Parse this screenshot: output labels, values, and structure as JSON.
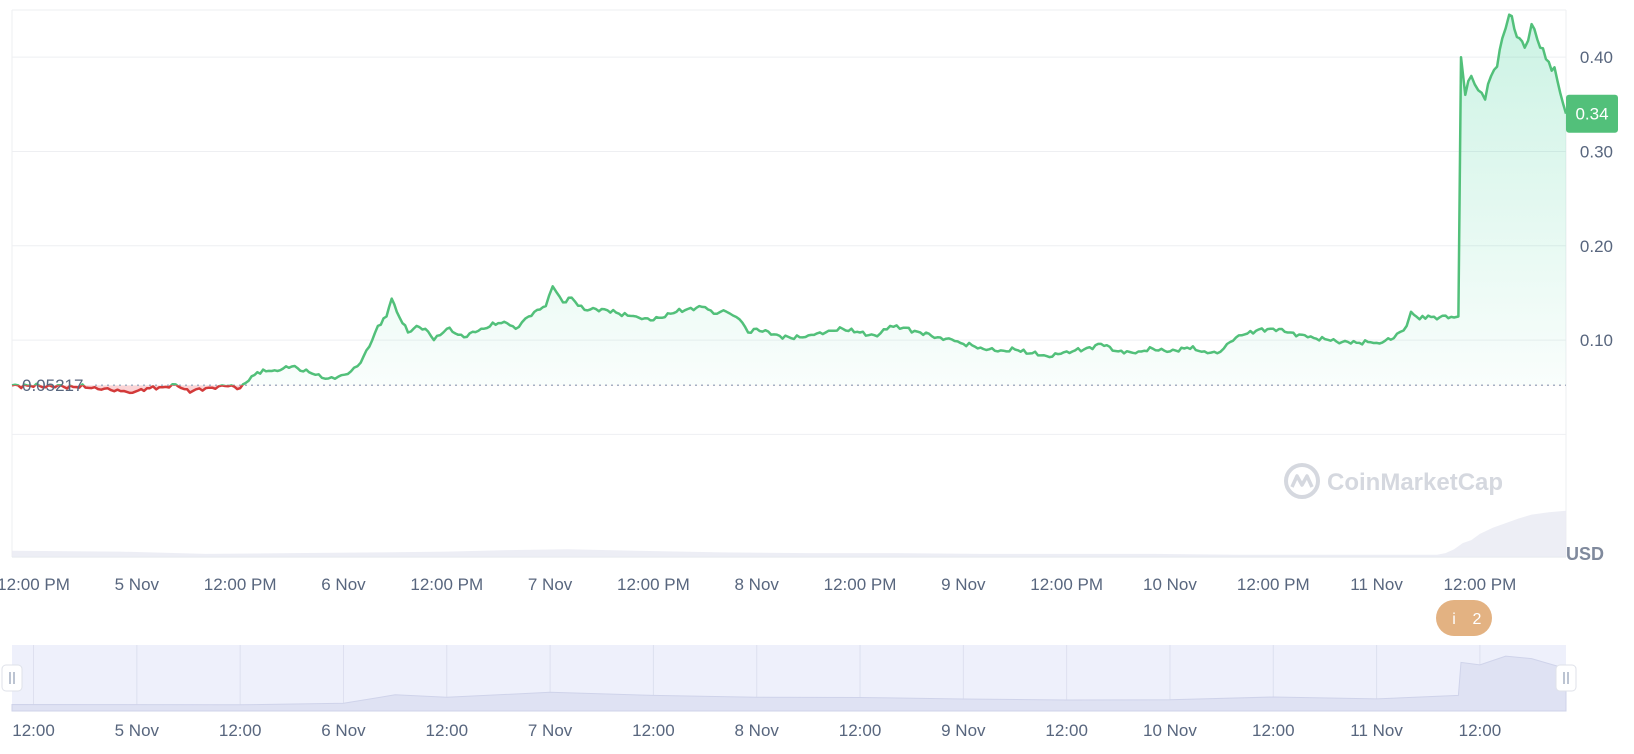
{
  "chart_data": {
    "type": "area",
    "title": "",
    "currency_label": "USD",
    "watermark": "CoinMarketCap",
    "current_price_label": "0.34",
    "baseline_label": "0.05217",
    "baseline_value": 0.05217,
    "event_marker": {
      "icon": "info-icon",
      "letter": "i",
      "count": "2"
    },
    "colors": {
      "up_line": "#52c07a",
      "down_line": "#d33a3a",
      "up_fill": "#16c784",
      "down_fill": "#ea3943",
      "badge": "#52c07a",
      "event": "#e3b282",
      "navigator_bg": "#eef0fb",
      "grid": "#eeeff2"
    },
    "y_axis": {
      "min": -0.13,
      "max": 0.45,
      "ticks": [
        0.1,
        0.2,
        0.3,
        0.4
      ],
      "tick_labels": [
        "0.10",
        "0.20",
        "0.30",
        "0.40"
      ]
    },
    "x_axis": {
      "labels": [
        {
          "t": 0,
          "text": "12:00 PM"
        },
        {
          "t": 12,
          "text": "5 Nov"
        },
        {
          "t": 24,
          "text": "12:00 PM"
        },
        {
          "t": 36,
          "text": "6 Nov"
        },
        {
          "t": 48,
          "text": "12:00 PM"
        },
        {
          "t": 60,
          "text": "7 Nov"
        },
        {
          "t": 72,
          "text": "12:00 PM"
        },
        {
          "t": 84,
          "text": "8 Nov"
        },
        {
          "t": 96,
          "text": "12:00 PM"
        },
        {
          "t": 108,
          "text": "9 Nov"
        },
        {
          "t": 120,
          "text": "12:00 PM"
        },
        {
          "t": 132,
          "text": "10 Nov"
        },
        {
          "t": 144,
          "text": "12:00 PM"
        },
        {
          "t": 156,
          "text": "11 Nov"
        },
        {
          "t": 168,
          "text": "12:00 PM"
        }
      ],
      "range_hours": [
        -2.5,
        178
      ],
      "unit": "hours since 12:00 PM 4 Nov"
    },
    "navigator_labels": [
      {
        "t": 0,
        "text": "12:00"
      },
      {
        "t": 12,
        "text": "5 Nov"
      },
      {
        "t": 24,
        "text": "12:00"
      },
      {
        "t": 36,
        "text": "6 Nov"
      },
      {
        "t": 48,
        "text": "12:00"
      },
      {
        "t": 60,
        "text": "7 Nov"
      },
      {
        "t": 72,
        "text": "12:00"
      },
      {
        "t": 84,
        "text": "8 Nov"
      },
      {
        "t": 96,
        "text": "12:00"
      },
      {
        "t": 108,
        "text": "9 Nov"
      },
      {
        "t": 120,
        "text": "12:00"
      },
      {
        "t": 132,
        "text": "10 Nov"
      },
      {
        "t": 144,
        "text": "12:00"
      },
      {
        "t": 156,
        "text": "11 Nov"
      },
      {
        "t": 168,
        "text": "12:00"
      }
    ],
    "series": [
      {
        "name": "Price",
        "points": [
          [
            -2.5,
            0.052
          ],
          [
            7.1,
            0.05
          ],
          [
            7.5,
            0.048
          ],
          [
            9,
            0.047
          ],
          [
            10.5,
            0.046
          ],
          [
            11.2,
            0.044
          ],
          [
            12.5,
            0.048
          ],
          [
            13.5,
            0.049
          ],
          [
            15,
            0.05
          ],
          [
            16.5,
            0.053
          ],
          [
            17.5,
            0.048
          ],
          [
            18.5,
            0.046
          ],
          [
            20,
            0.049
          ],
          [
            21.5,
            0.051
          ],
          [
            23,
            0.052
          ],
          [
            24,
            0.049
          ],
          [
            25,
            0.057
          ],
          [
            26,
            0.066
          ],
          [
            28,
            0.068
          ],
          [
            30,
            0.072
          ],
          [
            32,
            0.066
          ],
          [
            33.5,
            0.06
          ],
          [
            35,
            0.059
          ],
          [
            36.5,
            0.064
          ],
          [
            38,
            0.076
          ],
          [
            39,
            0.093
          ],
          [
            40,
            0.115
          ],
          [
            41,
            0.125
          ],
          [
            41.6,
            0.144
          ],
          [
            42.2,
            0.13
          ],
          [
            43.5,
            0.108
          ],
          [
            44.5,
            0.115
          ],
          [
            45.5,
            0.112
          ],
          [
            46.5,
            0.1
          ],
          [
            48,
            0.112
          ],
          [
            50,
            0.103
          ],
          [
            52,
            0.112
          ],
          [
            54,
            0.118
          ],
          [
            55,
            0.118
          ],
          [
            56,
            0.112
          ],
          [
            57.5,
            0.125
          ],
          [
            58.5,
            0.132
          ],
          [
            59.5,
            0.136
          ],
          [
            60.3,
            0.157
          ],
          [
            61.5,
            0.14
          ],
          [
            62.5,
            0.145
          ],
          [
            64,
            0.132
          ],
          [
            66,
            0.133
          ],
          [
            68,
            0.128
          ],
          [
            70,
            0.125
          ],
          [
            72,
            0.121
          ],
          [
            74,
            0.128
          ],
          [
            76,
            0.133
          ],
          [
            78,
            0.135
          ],
          [
            79,
            0.128
          ],
          [
            80.5,
            0.13
          ],
          [
            82,
            0.122
          ],
          [
            83,
            0.108
          ],
          [
            84,
            0.112
          ],
          [
            86,
            0.106
          ],
          [
            88,
            0.102
          ],
          [
            90,
            0.105
          ],
          [
            92,
            0.108
          ],
          [
            94,
            0.112
          ],
          [
            96,
            0.108
          ],
          [
            98,
            0.104
          ],
          [
            99.5,
            0.115
          ],
          [
            101,
            0.113
          ],
          [
            103,
            0.108
          ],
          [
            105,
            0.103
          ],
          [
            107,
            0.099
          ],
          [
            108,
            0.096
          ],
          [
            110,
            0.092
          ],
          [
            112,
            0.088
          ],
          [
            114,
            0.09
          ],
          [
            116,
            0.086
          ],
          [
            118,
            0.082
          ],
          [
            120,
            0.088
          ],
          [
            122,
            0.09
          ],
          [
            124,
            0.096
          ],
          [
            126,
            0.088
          ],
          [
            128,
            0.086
          ],
          [
            130,
            0.091
          ],
          [
            132,
            0.088
          ],
          [
            134,
            0.092
          ],
          [
            136,
            0.088
          ],
          [
            137.5,
            0.086
          ],
          [
            139,
            0.098
          ],
          [
            140,
            0.105
          ],
          [
            142,
            0.11
          ],
          [
            144,
            0.112
          ],
          [
            146,
            0.108
          ],
          [
            148,
            0.103
          ],
          [
            150,
            0.101
          ],
          [
            152,
            0.098
          ],
          [
            154,
            0.097
          ],
          [
            155,
            0.098
          ],
          [
            156,
            0.097
          ],
          [
            158,
            0.102
          ],
          [
            159.5,
            0.115
          ],
          [
            160,
            0.13
          ],
          [
            161,
            0.122
          ],
          [
            162,
            0.126
          ],
          [
            163,
            0.122
          ],
          [
            164,
            0.126
          ],
          [
            165,
            0.124
          ],
          [
            165.5,
            0.125
          ],
          [
            165.8,
            0.4
          ],
          [
            166.3,
            0.36
          ],
          [
            167,
            0.38
          ],
          [
            167.8,
            0.365
          ],
          [
            168.6,
            0.355
          ],
          [
            169.3,
            0.38
          ],
          [
            170,
            0.39
          ],
          [
            170.6,
            0.42
          ],
          [
            171.4,
            0.445
          ],
          [
            172,
            0.43
          ],
          [
            172.6,
            0.42
          ],
          [
            173.2,
            0.41
          ],
          [
            174,
            0.435
          ],
          [
            175,
            0.41
          ],
          [
            176,
            0.395
          ],
          [
            177,
            0.375
          ],
          [
            178,
            0.34
          ]
        ]
      }
    ],
    "volume": {
      "name": "Volume",
      "scale_max": 100,
      "points": [
        [
          -2.5,
          8
        ],
        [
          10,
          7
        ],
        [
          20,
          4
        ],
        [
          30,
          5
        ],
        [
          40,
          6
        ],
        [
          48,
          7
        ],
        [
          55,
          9
        ],
        [
          62,
          10
        ],
        [
          70,
          8
        ],
        [
          80,
          6
        ],
        [
          90,
          5
        ],
        [
          100,
          5
        ],
        [
          110,
          4
        ],
        [
          120,
          4
        ],
        [
          130,
          4
        ],
        [
          140,
          3
        ],
        [
          150,
          3
        ],
        [
          160,
          3
        ],
        [
          163,
          3
        ],
        [
          164,
          5
        ],
        [
          165,
          10
        ],
        [
          166,
          18
        ],
        [
          167,
          22
        ],
        [
          168,
          30
        ],
        [
          169.5,
          38
        ],
        [
          171,
          44
        ],
        [
          172.5,
          50
        ],
        [
          174,
          55
        ],
        [
          176,
          58
        ],
        [
          178,
          60
        ]
      ]
    },
    "navigator": {
      "max": 0.45,
      "points": [
        [
          -2.5,
          0.052
        ],
        [
          24,
          0.05
        ],
        [
          36,
          0.062
        ],
        [
          42,
          0.13
        ],
        [
          48,
          0.11
        ],
        [
          60,
          0.15
        ],
        [
          72,
          0.125
        ],
        [
          84,
          0.11
        ],
        [
          96,
          0.108
        ],
        [
          108,
          0.096
        ],
        [
          120,
          0.088
        ],
        [
          132,
          0.09
        ],
        [
          144,
          0.112
        ],
        [
          156,
          0.097
        ],
        [
          165.5,
          0.125
        ],
        [
          165.8,
          0.39
        ],
        [
          168,
          0.37
        ],
        [
          171,
          0.44
        ],
        [
          174,
          0.42
        ],
        [
          178,
          0.34
        ]
      ]
    }
  }
}
